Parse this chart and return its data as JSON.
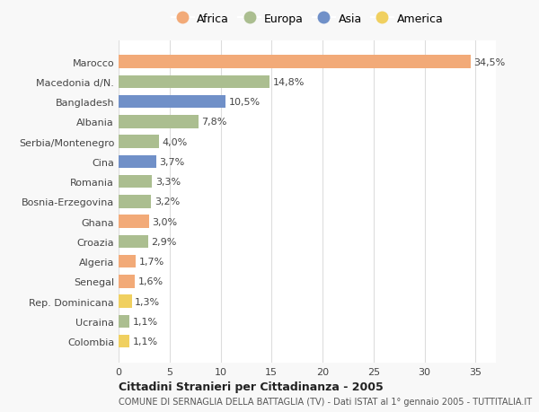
{
  "countries": [
    "Marocco",
    "Macedonia d/N.",
    "Bangladesh",
    "Albania",
    "Serbia/Montenegro",
    "Cina",
    "Romania",
    "Bosnia-Erzegovina",
    "Ghana",
    "Croazia",
    "Algeria",
    "Senegal",
    "Rep. Dominicana",
    "Ucraina",
    "Colombia"
  ],
  "values": [
    34.5,
    14.8,
    10.5,
    7.8,
    4.0,
    3.7,
    3.3,
    3.2,
    3.0,
    2.9,
    1.7,
    1.6,
    1.3,
    1.1,
    1.1
  ],
  "labels": [
    "34,5%",
    "14,8%",
    "10,5%",
    "7,8%",
    "4,0%",
    "3,7%",
    "3,3%",
    "3,2%",
    "3,0%",
    "2,9%",
    "1,7%",
    "1,6%",
    "1,3%",
    "1,1%",
    "1,1%"
  ],
  "continents": [
    "Africa",
    "Europa",
    "Asia",
    "Europa",
    "Europa",
    "Asia",
    "Europa",
    "Europa",
    "Africa",
    "Europa",
    "Africa",
    "Africa",
    "America",
    "Europa",
    "America"
  ],
  "colors": {
    "Africa": "#F2AA78",
    "Europa": "#ABBE90",
    "Asia": "#7090C8",
    "America": "#F0D060"
  },
  "legend_order": [
    "Africa",
    "Europa",
    "Asia",
    "America"
  ],
  "title1": "Cittadini Stranieri per Cittadinanza - 2005",
  "title2": "COMUNE DI SERNAGLIA DELLA BATTAGLIA (TV) - Dati ISTAT al 1° gennaio 2005 - TUTTITALIA.IT",
  "xlim": [
    0,
    37
  ],
  "xticks": [
    0,
    5,
    10,
    15,
    20,
    25,
    30,
    35
  ],
  "bg_color": "#F8F8F8",
  "plot_bg_color": "#FFFFFF"
}
